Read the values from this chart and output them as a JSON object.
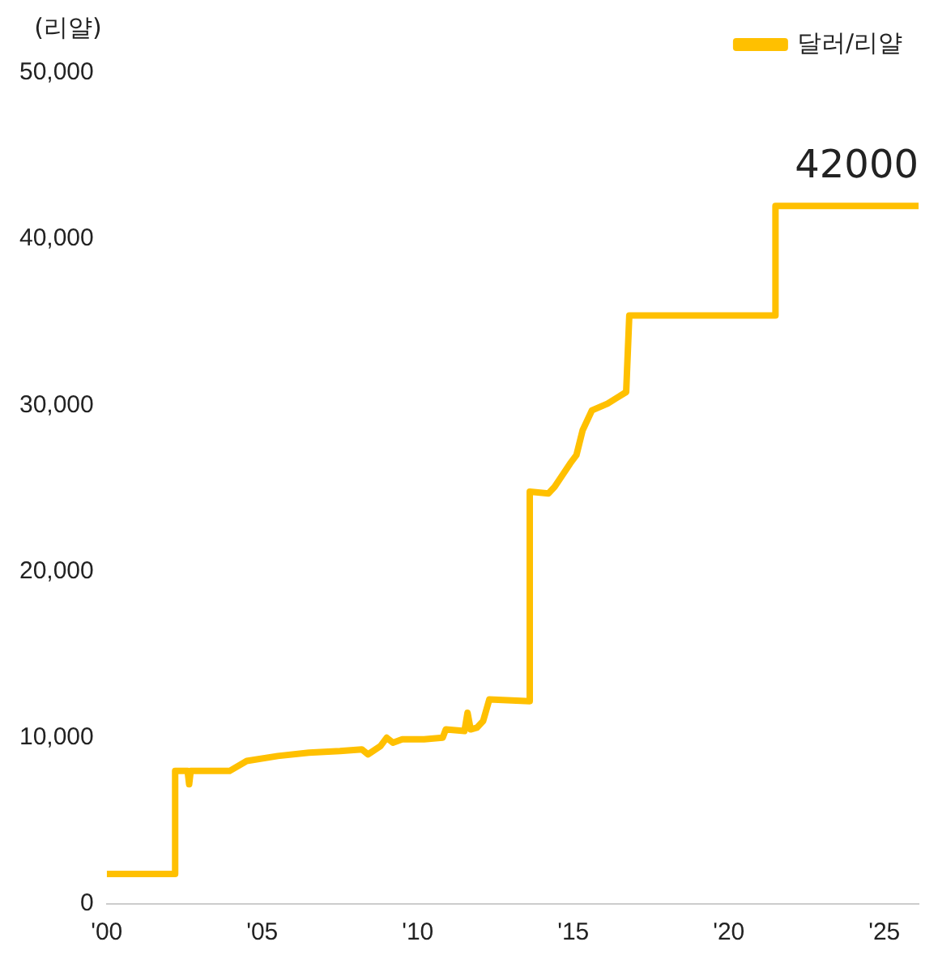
{
  "chart_data": {
    "type": "line",
    "ylabel": "(리얄)",
    "legend": "top right",
    "grid": false,
    "marker": "none",
    "line_style": "solid",
    "xlim": [
      2000,
      2026.1
    ],
    "xticks": [
      {
        "value": 2000,
        "label": "'00"
      },
      {
        "value": 2005,
        "label": "'05"
      },
      {
        "value": 2010,
        "label": "'10"
      },
      {
        "value": 2015,
        "label": "'15"
      },
      {
        "value": 2020,
        "label": "'20"
      },
      {
        "value": 2025,
        "label": "'25"
      }
    ],
    "ylim": [
      0,
      50000
    ],
    "yticks": [
      {
        "value": 0,
        "label": "0"
      },
      {
        "value": 10000,
        "label": "10,000"
      },
      {
        "value": 20000,
        "label": "20,000"
      },
      {
        "value": 30000,
        "label": "30,000"
      },
      {
        "value": 40000,
        "label": "40,000"
      },
      {
        "value": 50000,
        "label": "50,000"
      }
    ],
    "annotations": [
      {
        "text": "42000",
        "x": 2026.1,
        "y": 42000
      }
    ],
    "series": [
      {
        "name": "달러/리얄",
        "color": "#ffc000",
        "x": [
          2000,
          2002.2,
          2002.2,
          2002.6,
          2002.65,
          2002.7,
          2003.95,
          2004.5,
          2005.5,
          2006.5,
          2007.5,
          2008.2,
          2008.4,
          2008.8,
          2009.0,
          2009.2,
          2009.5,
          2010.2,
          2010.8,
          2010.9,
          2011.5,
          2011.6,
          2011.7,
          2011.9,
          2012.1,
          2012.3,
          2013.6,
          2013.6,
          2014.2,
          2014.4,
          2014.9,
          2015.1,
          2015.3,
          2015.6,
          2016.1,
          2016.7,
          2016.8,
          2021.5,
          2021.5,
          2026.1
        ],
        "values": [
          1800,
          1800,
          8000,
          8000,
          7200,
          8000,
          8000,
          8600,
          8900,
          9100,
          9200,
          9300,
          9000,
          9500,
          10000,
          9700,
          9900,
          9900,
          10000,
          10500,
          10400,
          11500,
          10500,
          10600,
          11000,
          12300,
          12200,
          24800,
          24700,
          25100,
          26500,
          27000,
          28500,
          29700,
          30100,
          30800,
          35400,
          35400,
          42000,
          42000
        ]
      }
    ]
  }
}
